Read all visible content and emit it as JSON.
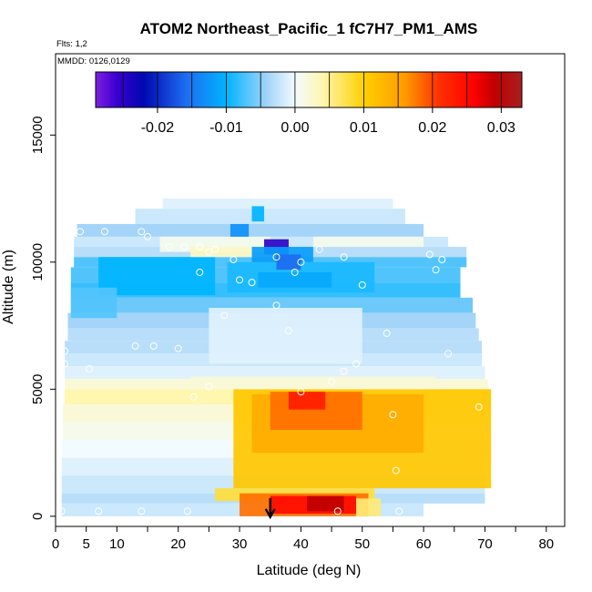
{
  "chart_data": {
    "type": "heatmap",
    "title": "ATOM2 Northeast_Pacific_1 fC7H7_PM1_AMS",
    "flights_label": "Flts: 1,2",
    "date_label": "MMDD: 0126,0129",
    "xlabel": "Latitude (deg N)",
    "ylabel": "Altitude (m)",
    "xlim": [
      0,
      83
    ],
    "ylim": [
      -400,
      18200
    ],
    "x_ticks_labeled": [
      0,
      5,
      10,
      20,
      30,
      40,
      50,
      60,
      70,
      80
    ],
    "x_ticks_unlabeled": [
      15,
      25,
      35,
      45,
      55,
      65,
      75,
      85
    ],
    "y_ticks": [
      0,
      5000,
      10000,
      15000
    ],
    "colorbar": {
      "range": [
        -0.029,
        0.033
      ],
      "ticks": [
        -0.02,
        -0.01,
        0.0,
        0.01,
        0.02,
        0.03
      ],
      "tick_labels": [
        "-0.02",
        "-0.01",
        "0.00",
        "0.01",
        "0.02",
        "0.03"
      ],
      "stops": [
        {
          "value": -0.029,
          "color": "#7f1fe0"
        },
        {
          "value": -0.026,
          "color": "#3a00d0"
        },
        {
          "value": -0.022,
          "color": "#0008b0"
        },
        {
          "value": -0.016,
          "color": "#1e6bf0"
        },
        {
          "value": -0.01,
          "color": "#00b4ff"
        },
        {
          "value": -0.004,
          "color": "#a4d4f8"
        },
        {
          "value": 0.0,
          "color": "#f2fbff"
        },
        {
          "value": 0.004,
          "color": "#fff6b0"
        },
        {
          "value": 0.01,
          "color": "#ffd000"
        },
        {
          "value": 0.016,
          "color": "#ff9a00"
        },
        {
          "value": 0.021,
          "color": "#ff3000"
        },
        {
          "value": 0.026,
          "color": "#ff0000"
        },
        {
          "value": 0.029,
          "color": "#c00000"
        },
        {
          "value": 0.033,
          "color": "#a82020"
        }
      ]
    },
    "curtain_bands": [
      {
        "alt": [
          12100,
          12500
        ],
        "lat": [
          17.5,
          55
        ],
        "value": -0.001
      },
      {
        "alt": [
          11500,
          12100
        ],
        "lat": [
          13,
          57
        ],
        "value": -0.002
      },
      {
        "alt": [
          11000,
          11500
        ],
        "lat": [
          3.5,
          60
        ],
        "value": -0.004
      },
      {
        "alt": [
          10600,
          11000
        ],
        "lat": [
          3,
          64
        ],
        "value": -0.002
      },
      {
        "alt": [
          10200,
          10600
        ],
        "lat": [
          3,
          67
        ],
        "value": -0.003
      },
      {
        "alt": [
          9800,
          10200
        ],
        "lat": [
          3,
          67
        ],
        "value": -0.007
      },
      {
        "alt": [
          9200,
          9800
        ],
        "lat": [
          2.5,
          66
        ],
        "value": -0.007
      },
      {
        "alt": [
          8600,
          9200
        ],
        "lat": [
          2.5,
          66
        ],
        "value": -0.008
      },
      {
        "alt": [
          8000,
          8600
        ],
        "lat": [
          2.5,
          68
        ],
        "value": -0.006
      },
      {
        "alt": [
          7400,
          8000
        ],
        "lat": [
          2,
          68.5
        ],
        "value": -0.004
      },
      {
        "alt": [
          6900,
          7400
        ],
        "lat": [
          2,
          69
        ],
        "value": -0.003
      },
      {
        "alt": [
          6400,
          6900
        ],
        "lat": [
          1.5,
          69.5
        ],
        "value": -0.003
      },
      {
        "alt": [
          5900,
          6400
        ],
        "lat": [
          1.5,
          69.5
        ],
        "value": -0.002
      },
      {
        "alt": [
          5400,
          5900
        ],
        "lat": [
          1.5,
          70
        ],
        "value": -0.001
      },
      {
        "alt": [
          5000,
          5400
        ],
        "lat": [
          1.5,
          70.5
        ],
        "value": 0.002
      },
      {
        "alt": [
          4400,
          5000
        ],
        "lat": [
          1.5,
          71
        ],
        "value": 0.004
      },
      {
        "alt": [
          3700,
          4400
        ],
        "lat": [
          1.2,
          71
        ],
        "value": 0.002
      },
      {
        "alt": [
          3000,
          3700
        ],
        "lat": [
          1.2,
          70.5
        ],
        "value": 0.001
      },
      {
        "alt": [
          2300,
          3000
        ],
        "lat": [
          1,
          70.5
        ],
        "value": 0.0
      },
      {
        "alt": [
          1600,
          2300
        ],
        "lat": [
          1,
          70
        ],
        "value": -0.001
      },
      {
        "alt": [
          900,
          1600
        ],
        "lat": [
          1,
          70
        ],
        "value": -0.002
      },
      {
        "alt": [
          500,
          900
        ],
        "lat": [
          1,
          70
        ],
        "value": -0.003
      },
      {
        "alt": [
          0,
          500
        ],
        "lat": [
          1,
          60
        ],
        "value": -0.002
      }
    ],
    "features": [
      {
        "alt": [
          1100,
          5000
        ],
        "lat": [
          29,
          71
        ],
        "value": 0.011
      },
      {
        "alt": [
          2500,
          4800
        ],
        "lat": [
          32,
          60
        ],
        "value": 0.014
      },
      {
        "alt": [
          3400,
          4900
        ],
        "lat": [
          35,
          50
        ],
        "value": 0.018
      },
      {
        "alt": [
          4200,
          4900
        ],
        "lat": [
          38,
          44
        ],
        "value": 0.023
      },
      {
        "alt": [
          600,
          1100
        ],
        "lat": [
          26,
          52
        ],
        "value": 0.008
      },
      {
        "alt": [
          0,
          900
        ],
        "lat": [
          30,
          51
        ],
        "value": 0.018
      },
      {
        "alt": [
          100,
          800
        ],
        "lat": [
          35,
          49
        ],
        "value": 0.025
      },
      {
        "alt": [
          200,
          800
        ],
        "lat": [
          41,
          47
        ],
        "value": 0.029
      },
      {
        "alt": [
          0,
          700
        ],
        "lat": [
          49,
          53
        ],
        "value": 0.006
      },
      {
        "alt": [
          5000,
          5500
        ],
        "lat": [
          22,
          62
        ],
        "value": 0.002
      },
      {
        "alt": [
          8700,
          10200
        ],
        "lat": [
          7,
          26
        ],
        "value": -0.01
      },
      {
        "alt": [
          8800,
          10000
        ],
        "lat": [
          28,
          52
        ],
        "value": -0.009
      },
      {
        "alt": [
          9000,
          9600
        ],
        "lat": [
          33,
          45
        ],
        "value": -0.011
      },
      {
        "alt": [
          10400,
          11000
        ],
        "lat": [
          17,
          35
        ],
        "value": 0.001
      },
      {
        "alt": [
          10200,
          10600
        ],
        "lat": [
          22,
          32
        ],
        "value": 0.003
      },
      {
        "alt": [
          11000,
          11500
        ],
        "lat": [
          28.5,
          31.5
        ],
        "value": -0.013
      },
      {
        "alt": [
          10300,
          10900
        ],
        "lat": [
          34,
          38
        ],
        "value": -0.025
      },
      {
        "alt": [
          10000,
          10600
        ],
        "lat": [
          32,
          42
        ],
        "value": -0.012
      },
      {
        "alt": [
          9700,
          10300
        ],
        "lat": [
          36,
          40
        ],
        "value": -0.016
      },
      {
        "alt": [
          11600,
          12200
        ],
        "lat": [
          32,
          34
        ],
        "value": -0.01
      },
      {
        "alt": [
          10600,
          11000
        ],
        "lat": [
          42,
          60
        ],
        "value": 0.001
      },
      {
        "alt": [
          6000,
          8200
        ],
        "lat": [
          25,
          50
        ],
        "value": -0.001
      },
      {
        "alt": [
          7800,
          9000
        ],
        "lat": [
          2.5,
          10
        ],
        "value": -0.007
      }
    ],
    "sample_points": [
      [
        4,
        11200
      ],
      [
        8,
        11200
      ],
      [
        14,
        11200
      ],
      [
        15,
        11000
      ],
      [
        18.5,
        10600
      ],
      [
        21,
        10600
      ],
      [
        23.5,
        10600
      ],
      [
        25,
        10400
      ],
      [
        26,
        10500
      ],
      [
        29,
        10100
      ],
      [
        36,
        10200
      ],
      [
        40,
        10000
      ],
      [
        43,
        10500
      ],
      [
        47,
        10200
      ],
      [
        61,
        10300
      ],
      [
        63,
        10100
      ],
      [
        62,
        9700
      ],
      [
        50,
        9100
      ],
      [
        23.5,
        9600
      ],
      [
        30,
        9300
      ],
      [
        32,
        9200
      ],
      [
        39,
        9600
      ],
      [
        36,
        8300
      ],
      [
        27.5,
        7900
      ],
      [
        38,
        7300
      ],
      [
        54,
        7200
      ],
      [
        13,
        6700
      ],
      [
        16,
        6700
      ],
      [
        20,
        6600
      ],
      [
        64,
        6400
      ],
      [
        1.5,
        6500
      ],
      [
        1.5,
        6000
      ],
      [
        5.5,
        5800
      ],
      [
        45,
        5300
      ],
      [
        47,
        5700
      ],
      [
        49,
        6000
      ],
      [
        25,
        5100
      ],
      [
        22.5,
        4700
      ],
      [
        40,
        4900
      ],
      [
        69,
        4300
      ],
      [
        55,
        4000
      ],
      [
        55.5,
        1800
      ],
      [
        1,
        200
      ],
      [
        7,
        200
      ],
      [
        14,
        200
      ],
      [
        21.5,
        200
      ],
      [
        46,
        200
      ],
      [
        56,
        200
      ]
    ],
    "marker": {
      "lat": 35,
      "alt": 0,
      "symbol": "arrow-down"
    }
  }
}
